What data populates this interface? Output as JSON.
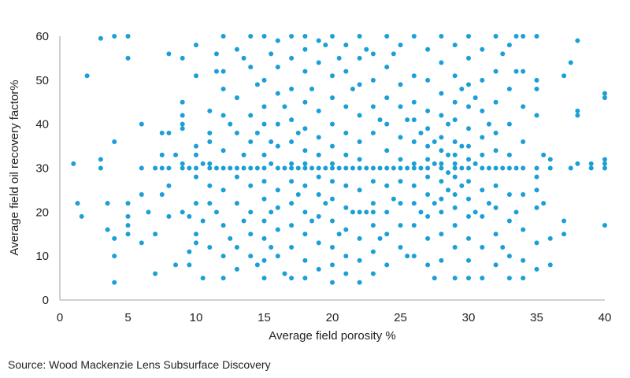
{
  "chart_data": {
    "type": "scatter",
    "title": "",
    "xlabel": "Average field porosity %",
    "ylabel": "Average field oil recovery factor%",
    "xlim": [
      0,
      40
    ],
    "ylim": [
      0,
      60
    ],
    "xticks": [
      0,
      5,
      10,
      15,
      20,
      25,
      30,
      35,
      40
    ],
    "yticks": [
      0,
      10,
      20,
      30,
      40,
      50,
      60
    ],
    "grid": false,
    "legend": "none",
    "marker_color": "#1a9fd6",
    "points": [
      [
        1,
        31
      ],
      [
        1.3,
        22
      ],
      [
        1.6,
        19
      ],
      [
        2,
        51
      ],
      [
        3,
        59.5
      ],
      [
        3,
        32
      ],
      [
        3,
        30
      ],
      [
        3.5,
        22
      ],
      [
        3.5,
        16
      ],
      [
        4,
        60
      ],
      [
        4,
        36
      ],
      [
        4,
        14
      ],
      [
        4,
        10
      ],
      [
        4,
        4
      ],
      [
        5,
        60
      ],
      [
        5,
        55
      ],
      [
        5,
        22
      ],
      [
        5,
        19
      ],
      [
        5,
        17
      ],
      [
        5,
        15
      ],
      [
        6,
        40
      ],
      [
        6,
        30
      ],
      [
        6,
        24
      ],
      [
        6,
        13
      ],
      [
        6.5,
        20
      ],
      [
        7,
        30
      ],
      [
        7,
        15
      ],
      [
        7,
        6
      ],
      [
        7.5,
        38
      ],
      [
        7.5,
        33
      ],
      [
        7.5,
        30
      ],
      [
        7.5,
        24
      ],
      [
        8,
        56
      ],
      [
        8,
        38
      ],
      [
        8,
        30
      ],
      [
        8,
        26
      ],
      [
        8,
        19
      ],
      [
        8.5,
        33
      ],
      [
        8.5,
        8
      ],
      [
        9,
        55
      ],
      [
        9,
        45
      ],
      [
        9,
        42
      ],
      [
        9,
        40
      ],
      [
        9,
        39
      ],
      [
        9,
        31
      ],
      [
        9,
        30
      ],
      [
        9,
        20
      ],
      [
        9.5,
        11
      ],
      [
        9.5,
        8
      ],
      [
        9.5,
        30
      ],
      [
        9.5,
        19
      ],
      [
        10,
        58
      ],
      [
        10,
        51
      ],
      [
        10,
        35
      ],
      [
        10,
        33
      ],
      [
        10,
        30
      ],
      [
        10,
        28
      ],
      [
        10,
        22
      ],
      [
        10,
        15
      ],
      [
        10,
        13
      ],
      [
        10.5,
        31
      ],
      [
        10.5,
        18
      ],
      [
        10.5,
        5
      ],
      [
        11,
        43
      ],
      [
        11,
        38
      ],
      [
        11,
        36
      ],
      [
        11,
        31
      ],
      [
        11,
        30
      ],
      [
        11,
        26
      ],
      [
        11,
        22
      ],
      [
        11,
        12
      ],
      [
        11.5,
        56
      ],
      [
        11.5,
        52
      ],
      [
        11.5,
        30
      ],
      [
        11.5,
        20
      ],
      [
        12,
        60
      ],
      [
        12,
        52
      ],
      [
        12,
        48
      ],
      [
        12,
        42
      ],
      [
        12,
        34
      ],
      [
        12,
        30
      ],
      [
        12,
        25
      ],
      [
        12,
        17
      ],
      [
        12,
        10
      ],
      [
        12,
        5
      ],
      [
        12.5,
        30
      ],
      [
        12.5,
        40
      ],
      [
        12.5,
        14
      ],
      [
        13,
        57
      ],
      [
        13,
        46
      ],
      [
        13,
        38
      ],
      [
        13,
        30
      ],
      [
        13,
        28
      ],
      [
        13,
        22
      ],
      [
        13,
        12
      ],
      [
        13,
        7
      ],
      [
        13.5,
        55
      ],
      [
        13.5,
        33
      ],
      [
        13.5,
        30
      ],
      [
        13.5,
        18
      ],
      [
        14,
        60
      ],
      [
        14,
        53
      ],
      [
        14,
        42
      ],
      [
        14,
        36
      ],
      [
        14,
        30
      ],
      [
        14,
        26
      ],
      [
        14,
        20
      ],
      [
        14,
        15
      ],
      [
        14,
        10
      ],
      [
        14.5,
        49
      ],
      [
        14.5,
        38
      ],
      [
        14.5,
        30
      ],
      [
        14.5,
        8
      ],
      [
        15,
        60
      ],
      [
        15,
        50
      ],
      [
        15,
        44
      ],
      [
        15,
        40
      ],
      [
        15,
        33
      ],
      [
        15,
        30
      ],
      [
        15,
        27
      ],
      [
        15,
        23
      ],
      [
        15,
        18
      ],
      [
        15,
        14
      ],
      [
        15,
        9
      ],
      [
        15,
        5
      ],
      [
        15.5,
        56
      ],
      [
        15.5,
        36
      ],
      [
        15.5,
        31
      ],
      [
        15.5,
        20
      ],
      [
        15.5,
        12
      ],
      [
        16,
        59
      ],
      [
        16,
        53
      ],
      [
        16,
        47
      ],
      [
        16,
        40
      ],
      [
        16,
        35
      ],
      [
        16,
        30
      ],
      [
        16,
        25
      ],
      [
        16,
        21
      ],
      [
        16,
        16
      ],
      [
        16,
        10
      ],
      [
        16.5,
        30
      ],
      [
        16.5,
        44
      ],
      [
        16.5,
        6
      ],
      [
        17,
        60
      ],
      [
        17,
        55
      ],
      [
        17,
        48
      ],
      [
        17,
        41
      ],
      [
        17,
        36
      ],
      [
        17,
        31
      ],
      [
        17,
        30
      ],
      [
        17,
        27
      ],
      [
        17,
        22
      ],
      [
        17,
        17
      ],
      [
        17,
        12
      ],
      [
        17,
        5
      ],
      [
        17.5,
        30
      ],
      [
        17.5,
        38
      ],
      [
        17.5,
        24
      ],
      [
        18,
        60
      ],
      [
        18,
        57
      ],
      [
        18,
        52
      ],
      [
        18,
        45
      ],
      [
        18,
        39
      ],
      [
        18,
        34
      ],
      [
        18,
        31
      ],
      [
        18,
        30
      ],
      [
        18,
        26
      ],
      [
        18,
        20
      ],
      [
        18,
        15
      ],
      [
        18,
        9
      ],
      [
        18,
        5
      ],
      [
        18.5,
        30
      ],
      [
        18.5,
        48
      ],
      [
        18.5,
        18
      ],
      [
        19,
        59
      ],
      [
        19,
        54
      ],
      [
        19,
        43
      ],
      [
        19,
        37
      ],
      [
        19,
        33
      ],
      [
        19,
        30
      ],
      [
        19,
        28
      ],
      [
        19,
        24
      ],
      [
        19,
        19
      ],
      [
        19,
        13
      ],
      [
        19,
        7
      ],
      [
        19.5,
        30
      ],
      [
        19.5,
        58
      ],
      [
        19.5,
        22
      ],
      [
        20,
        60
      ],
      [
        20,
        51
      ],
      [
        20,
        46
      ],
      [
        20,
        40
      ],
      [
        20,
        35
      ],
      [
        20,
        31
      ],
      [
        20,
        30
      ],
      [
        20,
        27
      ],
      [
        20,
        23
      ],
      [
        20,
        18
      ],
      [
        20,
        12
      ],
      [
        20,
        8
      ],
      [
        20,
        4
      ],
      [
        20.5,
        30
      ],
      [
        20.5,
        55
      ],
      [
        20.5,
        15
      ],
      [
        21,
        58
      ],
      [
        21,
        52
      ],
      [
        21,
        44
      ],
      [
        21,
        38
      ],
      [
        21,
        33
      ],
      [
        21,
        30
      ],
      [
        21,
        26
      ],
      [
        21,
        21
      ],
      [
        21,
        16
      ],
      [
        21,
        10
      ],
      [
        21,
        6
      ],
      [
        21.5,
        30
      ],
      [
        21.5,
        48
      ],
      [
        21.5,
        20
      ],
      [
        22,
        60
      ],
      [
        22,
        55
      ],
      [
        22,
        49
      ],
      [
        22,
        42
      ],
      [
        22,
        36
      ],
      [
        22,
        32
      ],
      [
        22,
        30
      ],
      [
        22,
        25
      ],
      [
        22,
        20
      ],
      [
        22,
        14
      ],
      [
        22,
        9
      ],
      [
        22,
        4
      ],
      [
        22.5,
        30
      ],
      [
        22.5,
        57
      ],
      [
        22.5,
        20
      ],
      [
        23,
        56
      ],
      [
        23,
        50
      ],
      [
        23,
        44
      ],
      [
        23,
        38
      ],
      [
        23,
        30
      ],
      [
        23,
        27
      ],
      [
        23,
        22
      ],
      [
        23,
        20
      ],
      [
        23,
        17
      ],
      [
        23,
        11
      ],
      [
        23,
        6
      ],
      [
        23.5,
        30
      ],
      [
        23.5,
        41
      ],
      [
        23.5,
        14
      ],
      [
        24,
        60
      ],
      [
        24,
        53
      ],
      [
        24,
        46
      ],
      [
        24,
        40
      ],
      [
        24,
        34
      ],
      [
        24,
        30
      ],
      [
        24,
        26
      ],
      [
        24,
        20
      ],
      [
        24,
        15
      ],
      [
        24,
        8
      ],
      [
        24.5,
        30
      ],
      [
        24.5,
        56
      ],
      [
        24.5,
        23
      ],
      [
        25,
        58
      ],
      [
        25,
        49
      ],
      [
        25,
        44
      ],
      [
        25,
        37
      ],
      [
        25,
        32
      ],
      [
        25,
        30
      ],
      [
        25,
        27
      ],
      [
        25,
        22
      ],
      [
        25,
        17
      ],
      [
        25,
        12
      ],
      [
        25.5,
        30
      ],
      [
        25.5,
        41
      ],
      [
        25.5,
        10
      ],
      [
        26,
        60
      ],
      [
        26,
        51
      ],
      [
        26,
        45
      ],
      [
        26,
        41
      ],
      [
        26,
        36
      ],
      [
        26,
        31
      ],
      [
        26,
        30
      ],
      [
        26,
        26
      ],
      [
        26,
        22
      ],
      [
        26,
        17
      ],
      [
        26,
        10
      ],
      [
        26.5,
        30
      ],
      [
        26.5,
        38
      ],
      [
        26.5,
        20
      ],
      [
        27,
        57
      ],
      [
        27,
        50
      ],
      [
        27,
        43
      ],
      [
        27,
        39
      ],
      [
        27,
        35
      ],
      [
        27,
        32
      ],
      [
        27,
        30
      ],
      [
        27,
        28
      ],
      [
        27,
        24
      ],
      [
        27,
        19
      ],
      [
        27,
        14
      ],
      [
        27,
        8
      ],
      [
        27.5,
        31
      ],
      [
        27.5,
        36
      ],
      [
        27.5,
        22
      ],
      [
        27.5,
        5
      ],
      [
        28,
        60
      ],
      [
        28,
        54
      ],
      [
        28,
        47
      ],
      [
        28,
        42
      ],
      [
        28,
        37
      ],
      [
        28,
        34
      ],
      [
        28,
        31
      ],
      [
        28,
        30
      ],
      [
        28,
        27
      ],
      [
        28,
        23
      ],
      [
        28,
        20
      ],
      [
        28,
        15
      ],
      [
        28,
        9
      ],
      [
        28.5,
        33
      ],
      [
        28.5,
        29
      ],
      [
        28.5,
        25
      ],
      [
        28.5,
        40
      ],
      [
        29,
        58
      ],
      [
        29,
        51
      ],
      [
        29,
        45
      ],
      [
        29,
        41
      ],
      [
        29,
        36
      ],
      [
        29,
        33
      ],
      [
        29,
        31
      ],
      [
        29,
        30
      ],
      [
        29,
        28
      ],
      [
        29,
        24
      ],
      [
        29,
        21
      ],
      [
        29,
        17
      ],
      [
        29,
        12
      ],
      [
        29,
        5
      ],
      [
        29.5,
        48
      ],
      [
        29.5,
        30
      ],
      [
        29.5,
        26
      ],
      [
        29.5,
        35
      ],
      [
        30,
        60
      ],
      [
        30,
        55
      ],
      [
        30,
        49
      ],
      [
        30,
        44
      ],
      [
        30,
        39
      ],
      [
        30,
        35
      ],
      [
        30,
        32
      ],
      [
        30,
        30
      ],
      [
        30,
        27
      ],
      [
        30,
        23
      ],
      [
        30,
        19
      ],
      [
        30,
        14
      ],
      [
        30,
        9
      ],
      [
        30,
        5
      ],
      [
        30.5,
        46
      ],
      [
        30.5,
        31
      ],
      [
        30.5,
        20
      ],
      [
        31,
        57
      ],
      [
        31,
        50
      ],
      [
        31,
        43
      ],
      [
        31,
        37
      ],
      [
        31,
        33
      ],
      [
        31,
        30
      ],
      [
        31,
        25
      ],
      [
        31,
        19
      ],
      [
        31,
        12
      ],
      [
        31,
        5
      ],
      [
        31.5,
        30
      ],
      [
        31.5,
        40
      ],
      [
        31.5,
        22
      ],
      [
        32,
        60
      ],
      [
        32,
        52
      ],
      [
        32,
        45
      ],
      [
        32,
        38
      ],
      [
        32,
        34
      ],
      [
        32,
        30
      ],
      [
        32,
        26
      ],
      [
        32,
        21
      ],
      [
        32,
        15
      ],
      [
        32,
        8
      ],
      [
        32.5,
        30
      ],
      [
        32.5,
        56
      ],
      [
        32.5,
        12
      ],
      [
        33,
        58
      ],
      [
        33,
        48
      ],
      [
        33,
        40
      ],
      [
        33,
        33
      ],
      [
        33,
        30
      ],
      [
        33,
        24
      ],
      [
        33,
        18
      ],
      [
        33,
        10
      ],
      [
        33,
        5
      ],
      [
        33.5,
        60
      ],
      [
        33.5,
        52
      ],
      [
        33.5,
        30
      ],
      [
        33.5,
        20
      ],
      [
        34,
        60
      ],
      [
        34,
        52
      ],
      [
        34,
        44
      ],
      [
        34,
        36
      ],
      [
        34,
        30
      ],
      [
        34,
        24
      ],
      [
        34,
        16
      ],
      [
        34,
        9
      ],
      [
        34,
        5
      ],
      [
        35,
        60
      ],
      [
        35,
        50
      ],
      [
        35,
        48
      ],
      [
        35,
        42
      ],
      [
        35,
        30
      ],
      [
        35,
        28
      ],
      [
        35,
        25
      ],
      [
        35,
        21
      ],
      [
        35,
        13
      ],
      [
        35,
        7
      ],
      [
        35.5,
        33
      ],
      [
        35.5,
        22
      ],
      [
        36,
        32
      ],
      [
        36,
        30
      ],
      [
        36,
        14
      ],
      [
        36,
        8
      ],
      [
        37,
        51
      ],
      [
        37,
        18
      ],
      [
        37,
        15
      ],
      [
        37.5,
        54
      ],
      [
        37.5,
        30
      ],
      [
        38,
        59
      ],
      [
        38,
        43
      ],
      [
        38,
        42
      ],
      [
        38,
        31
      ],
      [
        39,
        31
      ],
      [
        39,
        30
      ],
      [
        40,
        47
      ],
      [
        40,
        46
      ],
      [
        40,
        32
      ],
      [
        40,
        31
      ],
      [
        40,
        30
      ],
      [
        40,
        17
      ]
    ]
  },
  "source": "Source: Wood Mackenzie Lens Subsurface Discovery"
}
